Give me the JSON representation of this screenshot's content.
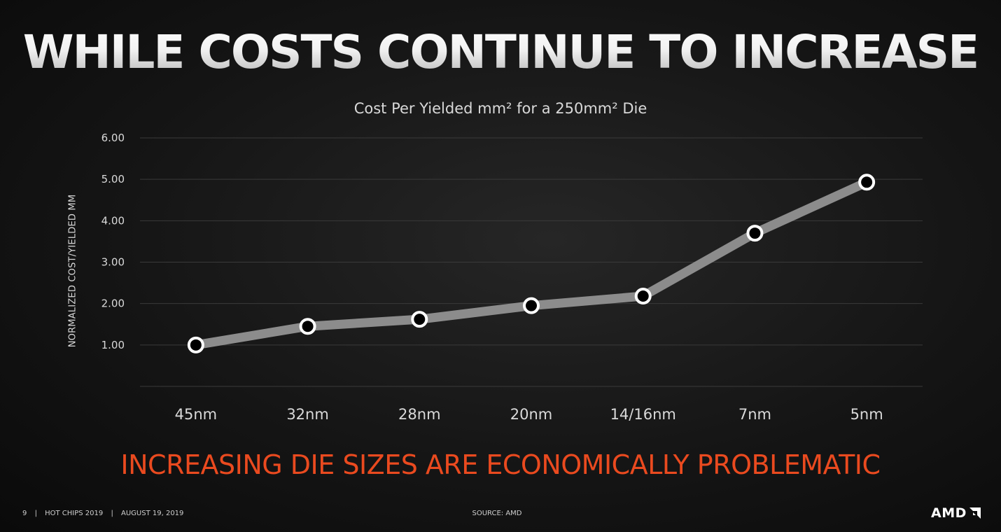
{
  "slide": {
    "title": "WHILE COSTS CONTINUE TO INCREASE",
    "tagline": "INCREASING DIE SIZES ARE ECONOMICALLY PROBLEMATIC",
    "footer": {
      "page_number": "9",
      "event": "HOT CHIPS 2019",
      "date": "AUGUST 19, 2019",
      "separator": "|"
    },
    "source": "SOURCE: AMD",
    "logo": {
      "text": "AMD",
      "icon": "amd-arrow-icon"
    }
  },
  "chart_data": {
    "type": "line",
    "title": "Cost Per Yielded mm² for a 250mm² Die",
    "xlabel": "",
    "ylabel": "NORMALIZED COST/YIELDED MM",
    "categories": [
      "45nm",
      "32nm",
      "28nm",
      "20nm",
      "14/16nm",
      "7nm",
      "5nm"
    ],
    "series": [
      {
        "values": [
          1.0,
          1.45,
          1.62,
          1.95,
          2.18,
          3.7,
          4.93
        ]
      }
    ],
    "ylim": [
      0,
      6
    ],
    "yticks": [
      {
        "value": 1,
        "label": "1.00"
      },
      {
        "value": 2,
        "label": "2.00"
      },
      {
        "value": 3,
        "label": "3.00"
      },
      {
        "value": 4,
        "label": "4.00"
      },
      {
        "value": 5,
        "label": "5.00"
      },
      {
        "value": 6,
        "label": "6.00"
      }
    ],
    "grid": true,
    "legend": "none",
    "colors": {
      "line": "#8c8c8c",
      "marker_fill": "#000000",
      "marker_stroke": "#ffffff",
      "grid": "#3a3a3a",
      "axis_text": "#d9d9d9",
      "tagline": "#ea4a1f"
    }
  }
}
